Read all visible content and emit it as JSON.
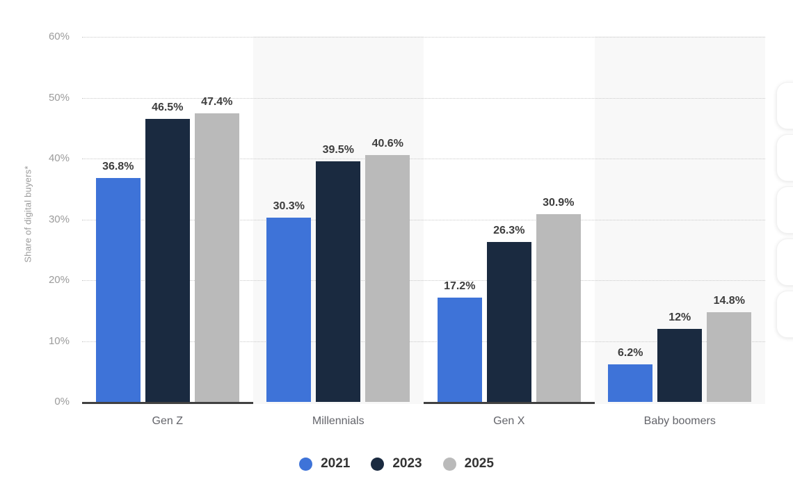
{
  "chart_data": {
    "type": "bar",
    "title": "",
    "ylabel": "Share of digital buyers*",
    "xlabel": "",
    "ylim": [
      0,
      60
    ],
    "ytick_labels": [
      "0%",
      "10%",
      "20%",
      "30%",
      "40%",
      "50%",
      "60%"
    ],
    "grid": "dotted-horizontal",
    "legend_position": "bottom-center",
    "alternating_bands": true,
    "categories": [
      "Gen Z",
      "Millennials",
      "Gen X",
      "Baby boomers"
    ],
    "series": [
      {
        "name": "2021",
        "color": "#3e73d8",
        "values": [
          36.8,
          30.3,
          17.2,
          6.2
        ],
        "labels": [
          "36.8%",
          "30.3%",
          "17.2%",
          "6.2%"
        ]
      },
      {
        "name": "2023",
        "color": "#1a2a40",
        "values": [
          46.5,
          39.5,
          26.3,
          12
        ],
        "labels": [
          "46.5%",
          "39.5%",
          "26.3%",
          "12%"
        ]
      },
      {
        "name": "2025",
        "color": "#bababa",
        "values": [
          47.4,
          40.6,
          30.9,
          14.8
        ],
        "labels": [
          "47.4%",
          "40.6%",
          "30.9%",
          "14.8%"
        ]
      }
    ]
  },
  "colors": {
    "background": "#ffffff",
    "band": "#f8f8f8",
    "gridline": "#c9c9c9",
    "axis_line": "#414141",
    "tick_label": "#9b9b9b",
    "category_label": "#63646a",
    "value_label": "#3d3d3d",
    "legend_text": "#333333"
  },
  "side_toolbar": {
    "visible_button_count": 5
  }
}
